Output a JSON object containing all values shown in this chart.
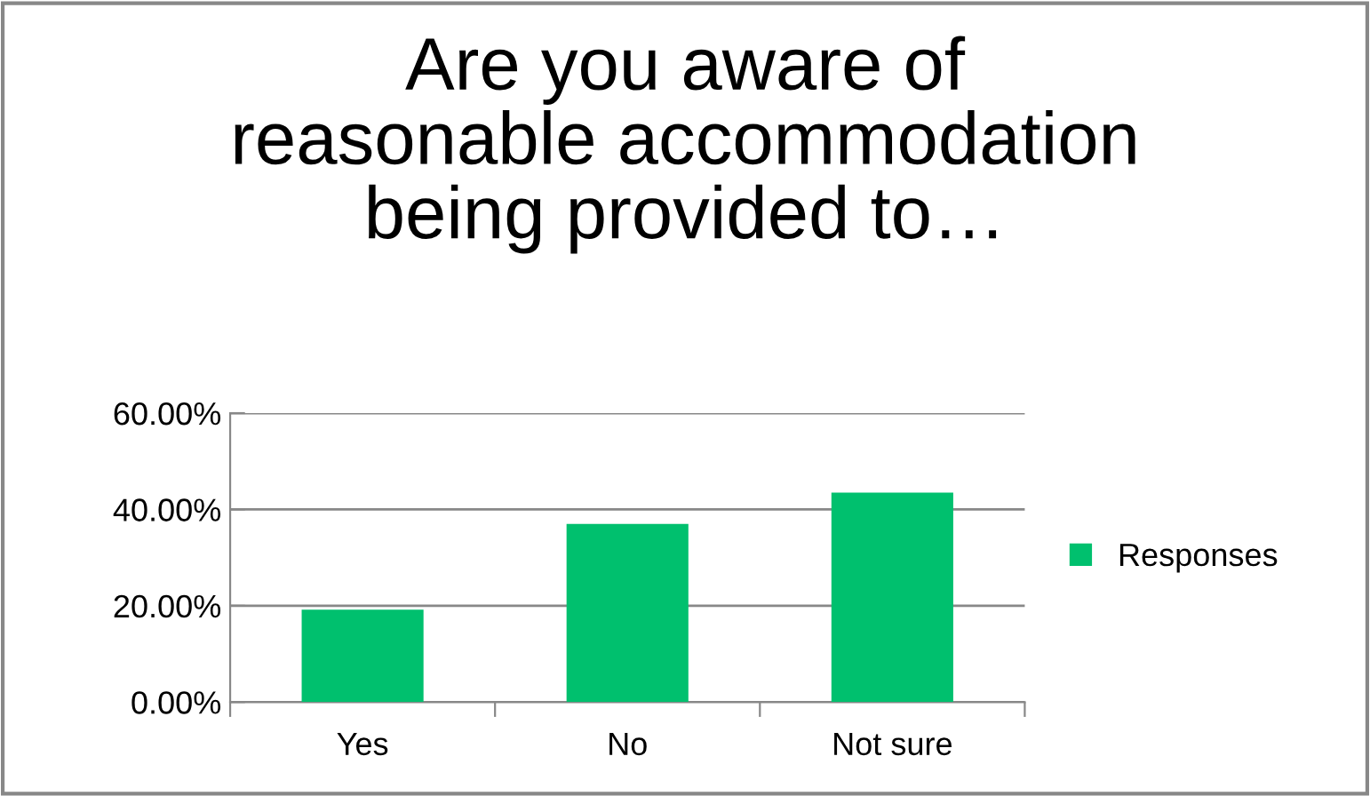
{
  "chart_data": {
    "type": "bar",
    "title": "Are you aware of\nreasonable accommodation\nbeing provided to…",
    "categories": [
      "Yes",
      "No",
      "Not sure"
    ],
    "series": [
      {
        "name": "Responses",
        "color": "#00c06e",
        "values": [
          19.2,
          37.0,
          43.5
        ]
      }
    ],
    "ylim": [
      0,
      60
    ],
    "yticks": [
      {
        "value": 0,
        "label": "0.00%"
      },
      {
        "value": 20,
        "label": "20.00%"
      },
      {
        "value": 40,
        "label": "40.00%"
      },
      {
        "value": 60,
        "label": "60.00%"
      }
    ],
    "grid": "y",
    "legend": "right"
  }
}
